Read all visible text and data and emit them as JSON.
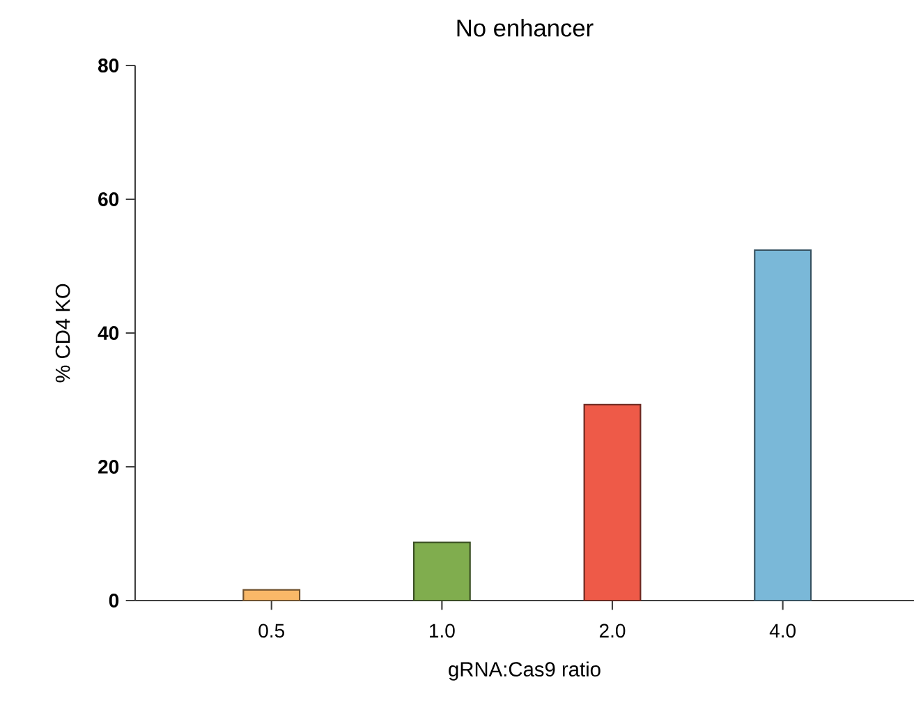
{
  "chart_data": {
    "type": "bar",
    "title": "No enhancer",
    "xlabel": "gRNA:Cas9 ratio",
    "ylabel": "% CD4 KO",
    "categories": [
      "0.5",
      "1.0",
      "2.0",
      "4.0"
    ],
    "values": [
      1.6,
      8.7,
      29.3,
      52.4
    ],
    "colors": [
      "#f9b868",
      "#80ad4e",
      "#ee5a48",
      "#7ab8d8"
    ],
    "ylim": [
      0,
      80
    ],
    "yticks": [
      0,
      20,
      40,
      60,
      80
    ],
    "grid": false
  }
}
